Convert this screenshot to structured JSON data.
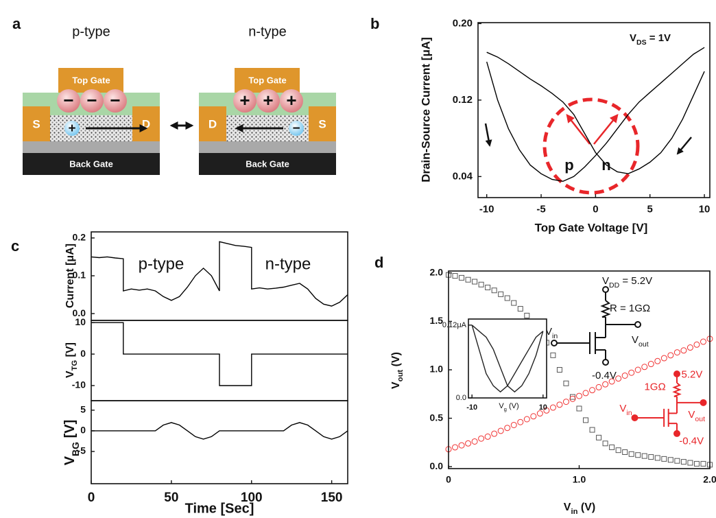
{
  "figure": {
    "panel_labels": [
      "a",
      "b",
      "c",
      "d"
    ]
  },
  "diagram": {
    "devices": [
      {
        "title": "p-type",
        "top_gate": "Top Gate",
        "back_gate": "Back Gate",
        "left_contact": "S",
        "right_contact": "D",
        "gate_charges": [
          "−",
          "−",
          "−"
        ],
        "carrier": "+"
      },
      {
        "title": "n-type",
        "top_gate": "Top Gate",
        "back_gate": "Back Gate",
        "left_contact": "D",
        "right_contact": "S",
        "gate_charges": [
          "+",
          "+",
          "+"
        ],
        "carrier": "−"
      }
    ]
  },
  "chart_data": [
    {
      "type": "line",
      "ylabel": "Drain-Source Current [μA]",
      "xlabel": "Top Gate Voltage [V]",
      "annotations": [
        [
          "V",
          "DS",
          " = 1V"
        ],
        "p",
        "n"
      ],
      "x": [
        -10,
        -9,
        -8,
        -7,
        -6,
        -5,
        -4,
        -3,
        -2,
        -1,
        0,
        1,
        2,
        3,
        4,
        5,
        6,
        7,
        8,
        9,
        10
      ],
      "series": [
        {
          "color": "#000000",
          "values": [
            0.16,
            0.12,
            0.09,
            0.068,
            0.052,
            0.043,
            0.037,
            0.035,
            0.04,
            0.05,
            0.062,
            0.075,
            0.09,
            0.105,
            0.118,
            0.128,
            0.138,
            0.148,
            0.158,
            0.168,
            0.175
          ]
        },
        {
          "color": "#000000",
          "values": [
            0.17,
            0.165,
            0.158,
            0.15,
            0.142,
            0.135,
            0.127,
            0.118,
            0.105,
            0.085,
            0.065,
            0.052,
            0.045,
            0.043,
            0.048,
            0.055,
            0.065,
            0.08,
            0.1,
            0.125,
            0.15
          ]
        }
      ],
      "xlim": [
        -10.8,
        10.5
      ],
      "ylim": [
        0.018,
        0.201
      ],
      "xticks": [
        -10,
        -5,
        0,
        5,
        10
      ],
      "yticks": [
        0.04,
        0.12,
        {
          "value": 0.2,
          "label": "0.20"
        }
      ]
    },
    {
      "type": "line",
      "ylabel": "Current [μA]",
      "annotations": [
        "p-type",
        "n-type"
      ],
      "x": [
        0,
        5,
        10,
        15,
        20,
        20,
        25,
        30,
        35,
        40,
        45,
        50,
        55,
        60,
        65,
        70,
        75,
        80,
        80,
        85,
        90,
        95,
        100,
        100,
        105,
        110,
        115,
        120,
        125,
        130,
        135,
        140,
        145,
        150,
        155,
        160
      ],
      "series": [
        {
          "color": "#000000",
          "values": [
            0.15,
            0.148,
            0.15,
            0.147,
            0.145,
            0.06,
            0.065,
            0.062,
            0.065,
            0.06,
            0.045,
            0.035,
            0.045,
            0.07,
            0.1,
            0.12,
            0.1,
            0.06,
            0.19,
            0.185,
            0.18,
            0.178,
            0.175,
            0.065,
            0.068,
            0.065,
            0.067,
            0.07,
            0.075,
            0.08,
            0.065,
            0.04,
            0.025,
            0.02,
            0.03,
            0.05
          ]
        }
      ],
      "xlim": [
        0,
        160
      ],
      "ylim": [
        -0.018,
        0.216
      ],
      "yticks": [
        {
          "value": 0,
          "label": "0.0"
        },
        0.1,
        0.2
      ]
    },
    {
      "type": "line",
      "ylabel": [
        "V",
        "TG",
        " [V]"
      ],
      "x": [
        0,
        20,
        20,
        80,
        80,
        100,
        100,
        160
      ],
      "series": [
        {
          "color": "#000000",
          "values": [
            10,
            10,
            0,
            0,
            -10,
            -10,
            0,
            0
          ]
        }
      ],
      "xlim": [
        0,
        160
      ],
      "ylim": [
        -14.8,
        10.7
      ],
      "yticks": [
        -10,
        0,
        10
      ]
    },
    {
      "type": "line",
      "ylabel": [
        "V",
        "BG",
        " [V]"
      ],
      "xlabel": "Time [Sec]",
      "x": [
        0,
        40,
        45,
        50,
        55,
        60,
        65,
        70,
        75,
        80,
        120,
        125,
        130,
        135,
        140,
        145,
        150,
        155,
        160
      ],
      "series": [
        {
          "color": "#000000",
          "values": [
            0,
            0,
            1.4,
            2,
            1.4,
            0,
            -1.4,
            -2,
            -1.4,
            0,
            0,
            1.4,
            2,
            1.4,
            0,
            -1.4,
            -2,
            -1.4,
            0
          ]
        }
      ],
      "xlim": [
        0,
        160
      ],
      "ylim": [
        -12.8,
        7.3
      ],
      "xticks": [
        0,
        50,
        100,
        150
      ],
      "yticks": [
        -5,
        0,
        5
      ]
    },
    {
      "type": "scatter",
      "xlabel": [
        "V",
        "in",
        " (V)"
      ],
      "ylabel": [
        "V",
        "out",
        " (V)"
      ],
      "x": [
        0,
        0.05,
        0.1,
        0.15,
        0.2,
        0.25,
        0.3,
        0.35,
        0.4,
        0.45,
        0.5,
        0.55,
        0.6,
        0.65,
        0.7,
        0.75,
        0.8,
        0.85,
        0.9,
        0.95,
        1,
        1.05,
        1.1,
        1.15,
        1.2,
        1.25,
        1.3,
        1.35,
        1.4,
        1.45,
        1.5,
        1.55,
        1.6,
        1.65,
        1.7,
        1.75,
        1.8,
        1.85,
        1.9,
        1.95,
        2
      ],
      "series": [
        {
          "color": "#555555",
          "marker": "square",
          "values": [
            1.98,
            1.97,
            1.95,
            1.93,
            1.91,
            1.88,
            1.85,
            1.82,
            1.78,
            1.74,
            1.69,
            1.63,
            1.56,
            1.48,
            1.39,
            1.28,
            1.15,
            1.0,
            0.86,
            0.72,
            0.6,
            0.48,
            0.38,
            0.3,
            0.24,
            0.2,
            0.17,
            0.15,
            0.13,
            0.12,
            0.11,
            0.1,
            0.09,
            0.08,
            0.07,
            0.06,
            0.05,
            0.04,
            0.03,
            0.03,
            0.02
          ]
        },
        {
          "color": "#f03030",
          "marker": "circle",
          "values": [
            0.18,
            0.2,
            0.22,
            0.24,
            0.26,
            0.29,
            0.31,
            0.34,
            0.37,
            0.4,
            0.43,
            0.46,
            0.49,
            0.52,
            0.55,
            0.58,
            0.61,
            0.64,
            0.67,
            0.7,
            0.73,
            0.76,
            0.79,
            0.82,
            0.85,
            0.88,
            0.91,
            0.94,
            0.97,
            1.0,
            1.03,
            1.06,
            1.09,
            1.12,
            1.15,
            1.18,
            1.2,
            1.23,
            1.26,
            1.29,
            1.32
          ]
        }
      ],
      "xlim": [
        0,
        2
      ],
      "ylim": [
        -0.02,
        2.02
      ],
      "xticks": [
        0,
        {
          "value": 1,
          "label": "1.0"
        },
        {
          "value": 2,
          "label": "2.0"
        }
      ],
      "yticks": [
        {
          "value": 0,
          "label": "0.0"
        },
        0.5,
        {
          "value": 1,
          "label": "1.0"
        },
        1.5,
        {
          "value": 2,
          "label": "2.0"
        }
      ],
      "circuits": [
        {
          "color": "#111111",
          "labels": [
            [
              "V",
              "DD",
              " = 5.2V"
            ],
            "R = 1GΩ",
            [
              "V",
              "in"
            ],
            [
              "V",
              "out"
            ],
            "-0.4V"
          ]
        },
        {
          "color": "#e8262a",
          "labels": [
            "5.2V",
            "1GΩ",
            [
              "V",
              "in"
            ],
            [
              "V",
              "out"
            ],
            "-0.4V"
          ]
        }
      ]
    },
    {
      "type": "line",
      "xlabel": [
        "V",
        "g",
        " (V)"
      ],
      "x": [
        -10,
        -8,
        -6,
        -4,
        -2,
        0,
        2,
        4,
        6,
        8,
        10
      ],
      "series": [
        {
          "color": "#222222",
          "values": [
            0.12,
            0.08,
            0.04,
            0.02,
            0.01,
            0.02,
            0.04,
            0.06,
            0.08,
            0.1,
            0.11
          ]
        },
        {
          "color": "#222222",
          "values": [
            0.12,
            0.11,
            0.1,
            0.08,
            0.05,
            0.02,
            0.01,
            0.02,
            0.04,
            0.07,
            0.11
          ]
        }
      ],
      "xlim": [
        -11,
        11
      ],
      "ylim": [
        0,
        0.13
      ],
      "xticks": [
        -10,
        10
      ],
      "yticks": [
        {
          "value": 0.12,
          "label": "0.12μA"
        },
        {
          "value": 0,
          "label": "0.0"
        }
      ]
    }
  ]
}
